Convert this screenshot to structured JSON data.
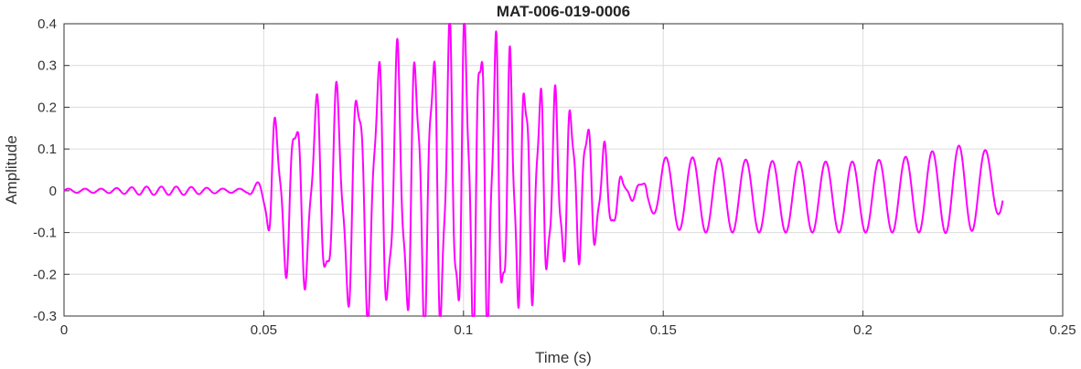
{
  "chart_data": {
    "type": "line",
    "title": "MAT-006-019-0006",
    "xlabel": "Time (s)",
    "ylabel": "Amplitude",
    "xlim": [
      0,
      0.25
    ],
    "ylim": [
      -0.3,
      0.4
    ],
    "x_ticks": [
      0,
      0.05,
      0.1,
      0.15,
      0.2,
      0.25
    ],
    "x_tick_labels": [
      "0",
      "0.05",
      "0.1",
      "0.15",
      "0.2",
      "0.25"
    ],
    "y_ticks": [
      -0.3,
      -0.2,
      -0.1,
      0,
      0.1,
      0.2,
      0.3,
      0.4
    ],
    "y_tick_labels": [
      "-0.3",
      "-0.2",
      "-0.1",
      "0",
      "0.1",
      "0.2",
      "0.3",
      "0.4"
    ],
    "grid": true,
    "series": [
      {
        "color": "#ff00ff",
        "x": [
          0,
          0.01,
          0.02,
          0.03,
          0.04,
          0.046,
          0.05,
          0.052,
          0.06,
          0.07,
          0.08,
          0.09,
          0.1,
          0.105,
          0.11,
          0.12,
          0.13,
          0.137,
          0.14,
          0.145,
          0.15,
          0.16,
          0.17,
          0.18,
          0.19,
          0.2,
          0.21,
          0.22,
          0.225,
          0.23,
          0.235
        ],
        "envelope_upper": [
          0.005,
          0.005,
          0.01,
          0.01,
          0.005,
          0.005,
          0.03,
          0.15,
          0.18,
          0.22,
          0.29,
          0.3,
          0.37,
          0.37,
          0.3,
          0.22,
          0.17,
          0.07,
          0.02,
          0.02,
          0.08,
          0.08,
          0.075,
          0.07,
          0.07,
          0.07,
          0.08,
          0.1,
          0.11,
          0.1,
          0.08
        ],
        "envelope_lower": [
          -0.005,
          -0.005,
          -0.01,
          -0.01,
          -0.005,
          -0.005,
          -0.04,
          -0.15,
          -0.2,
          -0.24,
          -0.27,
          -0.28,
          -0.3,
          -0.3,
          -0.27,
          -0.2,
          -0.13,
          -0.1,
          -0.02,
          -0.02,
          -0.09,
          -0.1,
          -0.1,
          -0.1,
          -0.1,
          -0.1,
          -0.1,
          -0.1,
          -0.11,
          -0.08,
          -0.05
        ]
      }
    ]
  }
}
